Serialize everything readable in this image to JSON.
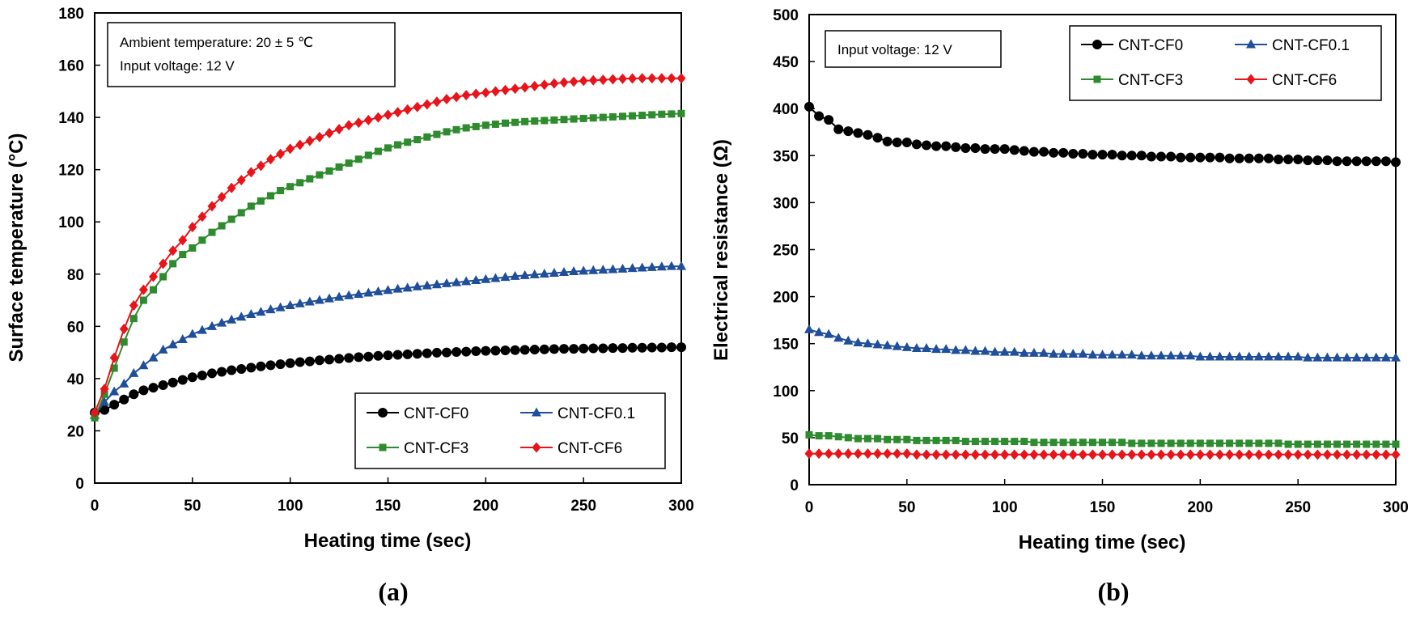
{
  "figure": {
    "panels": [
      {
        "caption": "(a)",
        "note_lines": [
          "Ambient temperature: 20 ± 5 ℃",
          "Input voltage: 12 V"
        ]
      },
      {
        "caption": "(b)",
        "note_lines": [
          "Input voltage: 12 V"
        ]
      }
    ]
  },
  "colors": {
    "CNT-CF0": "#000000",
    "CNT-CF0.1": "#1f4e9a",
    "CNT-CF3": "#2e8b2e",
    "CNT-CF6": "#e8141a"
  },
  "markers": {
    "CNT-CF0": "circle",
    "CNT-CF0.1": "triangle",
    "CNT-CF3": "square",
    "CNT-CF6": "diamond"
  },
  "chart_data": [
    {
      "type": "line",
      "title": "",
      "xlabel": "Heating time (sec)",
      "ylabel": "Surface temperature (°C)",
      "xlim": [
        0,
        300
      ],
      "ylim": [
        0,
        180
      ],
      "xticks": [
        0,
        50,
        100,
        150,
        200,
        250,
        300
      ],
      "yticks": [
        0,
        20,
        40,
        60,
        80,
        100,
        120,
        140,
        160,
        180
      ],
      "grid": false,
      "legend_position": "bottom-right",
      "x": [
        0,
        5,
        10,
        15,
        20,
        25,
        30,
        35,
        40,
        45,
        50,
        55,
        60,
        65,
        70,
        75,
        80,
        85,
        90,
        95,
        100,
        105,
        110,
        115,
        120,
        125,
        130,
        135,
        140,
        145,
        150,
        155,
        160,
        165,
        170,
        175,
        180,
        185,
        190,
        195,
        200,
        205,
        210,
        215,
        220,
        225,
        230,
        235,
        240,
        245,
        250,
        255,
        260,
        265,
        270,
        275,
        280,
        285,
        290,
        295,
        300
      ],
      "series": [
        {
          "name": "CNT-CF0",
          "values": [
            27,
            28,
            30,
            32,
            34,
            35.5,
            36.5,
            37.5,
            38.5,
            39.5,
            40.5,
            41.2,
            42,
            42.6,
            43.2,
            43.7,
            44.2,
            44.7,
            45.1,
            45.5,
            45.9,
            46.3,
            46.6,
            47,
            47.3,
            47.6,
            47.9,
            48.2,
            48.4,
            48.7,
            48.9,
            49.1,
            49.3,
            49.5,
            49.7,
            49.9,
            50,
            50.2,
            50.3,
            50.5,
            50.6,
            50.7,
            50.8,
            50.9,
            51,
            51.1,
            51.2,
            51.3,
            51.4,
            51.4,
            51.5,
            51.6,
            51.6,
            51.7,
            51.7,
            51.8,
            51.8,
            51.9,
            51.9,
            52,
            52
          ]
        },
        {
          "name": "CNT-CF0.1",
          "values": [
            26,
            31,
            35,
            38,
            42,
            45,
            48,
            51,
            53,
            55,
            57,
            58.5,
            60,
            61.3,
            62.5,
            63.6,
            64.6,
            65.5,
            66.4,
            67.2,
            68,
            68.7,
            69.4,
            70,
            70.6,
            71.2,
            71.8,
            72.3,
            72.8,
            73.3,
            73.8,
            74.3,
            74.7,
            75.2,
            75.6,
            76,
            76.4,
            76.8,
            77.2,
            77.6,
            78,
            78.4,
            78.8,
            79.2,
            79.5,
            79.8,
            80.1,
            80.4,
            80.7,
            81,
            81.2,
            81.4,
            81.6,
            81.8,
            82,
            82.2,
            82.4,
            82.6,
            82.8,
            83,
            83
          ]
        },
        {
          "name": "CNT-CF3",
          "values": [
            25,
            34,
            44,
            54,
            63,
            70,
            74,
            79,
            84,
            87.5,
            90,
            93,
            96,
            98.5,
            101,
            103.5,
            106,
            108,
            110,
            112,
            113.5,
            115,
            116.5,
            118,
            119.5,
            121,
            122.5,
            124,
            125.5,
            127,
            128.3,
            129.5,
            130.5,
            131.5,
            132.5,
            133.5,
            134.5,
            135.3,
            136,
            136.5,
            137,
            137.4,
            137.8,
            138.1,
            138.4,
            138.6,
            138.8,
            139,
            139.2,
            139.4,
            139.6,
            139.8,
            140,
            140.2,
            140.4,
            140.6,
            140.8,
            141,
            141.2,
            141.3,
            141.5
          ]
        },
        {
          "name": "CNT-CF6",
          "values": [
            27,
            36,
            48,
            59,
            68,
            74,
            79,
            84,
            89,
            93,
            98,
            102,
            106,
            109.5,
            113,
            116,
            119,
            121.5,
            124,
            126,
            128,
            129.5,
            131,
            132.5,
            134,
            135.5,
            137,
            138,
            139,
            140,
            141,
            142,
            143,
            144,
            145,
            146,
            147,
            147.8,
            148.5,
            149,
            149.5,
            150,
            150.5,
            151,
            151.5,
            152,
            152.5,
            153,
            153.4,
            153.7,
            154,
            154.2,
            154.4,
            154.6,
            154.8,
            154.9,
            155,
            155,
            155,
            155,
            155
          ]
        }
      ]
    },
    {
      "type": "line",
      "title": "",
      "xlabel": "Heating time (sec)",
      "ylabel": "Electrical resistance (Ω)",
      "xlim": [
        0,
        300
      ],
      "ylim": [
        0,
        500
      ],
      "xticks": [
        0,
        50,
        100,
        150,
        200,
        250,
        300
      ],
      "yticks": [
        0,
        50,
        100,
        150,
        200,
        250,
        300,
        350,
        400,
        450,
        500
      ],
      "grid": false,
      "legend_position": "top-right",
      "x": [
        0,
        5,
        10,
        15,
        20,
        25,
        30,
        35,
        40,
        45,
        50,
        55,
        60,
        65,
        70,
        75,
        80,
        85,
        90,
        95,
        100,
        105,
        110,
        115,
        120,
        125,
        130,
        135,
        140,
        145,
        150,
        155,
        160,
        165,
        170,
        175,
        180,
        185,
        190,
        195,
        200,
        205,
        210,
        215,
        220,
        225,
        230,
        235,
        240,
        245,
        250,
        255,
        260,
        265,
        270,
        275,
        280,
        285,
        290,
        295,
        300
      ],
      "series": [
        {
          "name": "CNT-CF0",
          "values": [
            402,
            392,
            388,
            378,
            376,
            374,
            372,
            369,
            365,
            364,
            364,
            362,
            361,
            360,
            360,
            359,
            358,
            358,
            357,
            357,
            357,
            356,
            355,
            354,
            354,
            353,
            353,
            352,
            352,
            351,
            351,
            351,
            350,
            350,
            350,
            349,
            349,
            349,
            348,
            348,
            348,
            348,
            348,
            347,
            347,
            347,
            347,
            347,
            346,
            346,
            346,
            345,
            345,
            345,
            344,
            344,
            344,
            344,
            344,
            344,
            343
          ]
        },
        {
          "name": "CNT-CF0.1",
          "values": [
            165,
            162,
            160,
            156,
            153,
            151,
            150,
            149,
            148,
            147,
            146,
            145,
            145,
            144,
            144,
            143,
            143,
            142,
            142,
            141,
            141,
            141,
            140,
            140,
            140,
            139,
            139,
            139,
            139,
            138,
            138,
            138,
            138,
            138,
            137,
            137,
            137,
            137,
            137,
            137,
            136,
            136,
            136,
            136,
            136,
            136,
            136,
            136,
            136,
            136,
            136,
            135,
            135,
            135,
            135,
            135,
            135,
            135,
            135,
            135,
            135
          ]
        },
        {
          "name": "CNT-CF3",
          "values": [
            53,
            52,
            52,
            51,
            50,
            49,
            49,
            49,
            48,
            48,
            48,
            47,
            47,
            47,
            47,
            47,
            46,
            46,
            46,
            46,
            46,
            46,
            46,
            45,
            45,
            45,
            45,
            45,
            45,
            45,
            45,
            45,
            45,
            44,
            44,
            44,
            44,
            44,
            44,
            44,
            44,
            44,
            44,
            44,
            44,
            44,
            44,
            44,
            44,
            43,
            43,
            43,
            43,
            43,
            43,
            43,
            43,
            43,
            43,
            43,
            43
          ]
        },
        {
          "name": "CNT-CF6",
          "values": [
            33,
            33,
            33,
            33,
            33,
            33,
            33,
            33,
            33,
            33,
            33,
            32,
            32,
            32,
            32,
            32,
            32,
            32,
            32,
            32,
            32,
            32,
            32,
            32,
            32,
            32,
            32,
            32,
            32,
            32,
            32,
            32,
            32,
            32,
            32,
            32,
            32,
            32,
            32,
            32,
            32,
            32,
            32,
            32,
            32,
            32,
            32,
            32,
            32,
            32,
            32,
            32,
            32,
            32,
            32,
            32,
            32,
            32,
            32,
            32,
            32
          ]
        }
      ]
    }
  ]
}
